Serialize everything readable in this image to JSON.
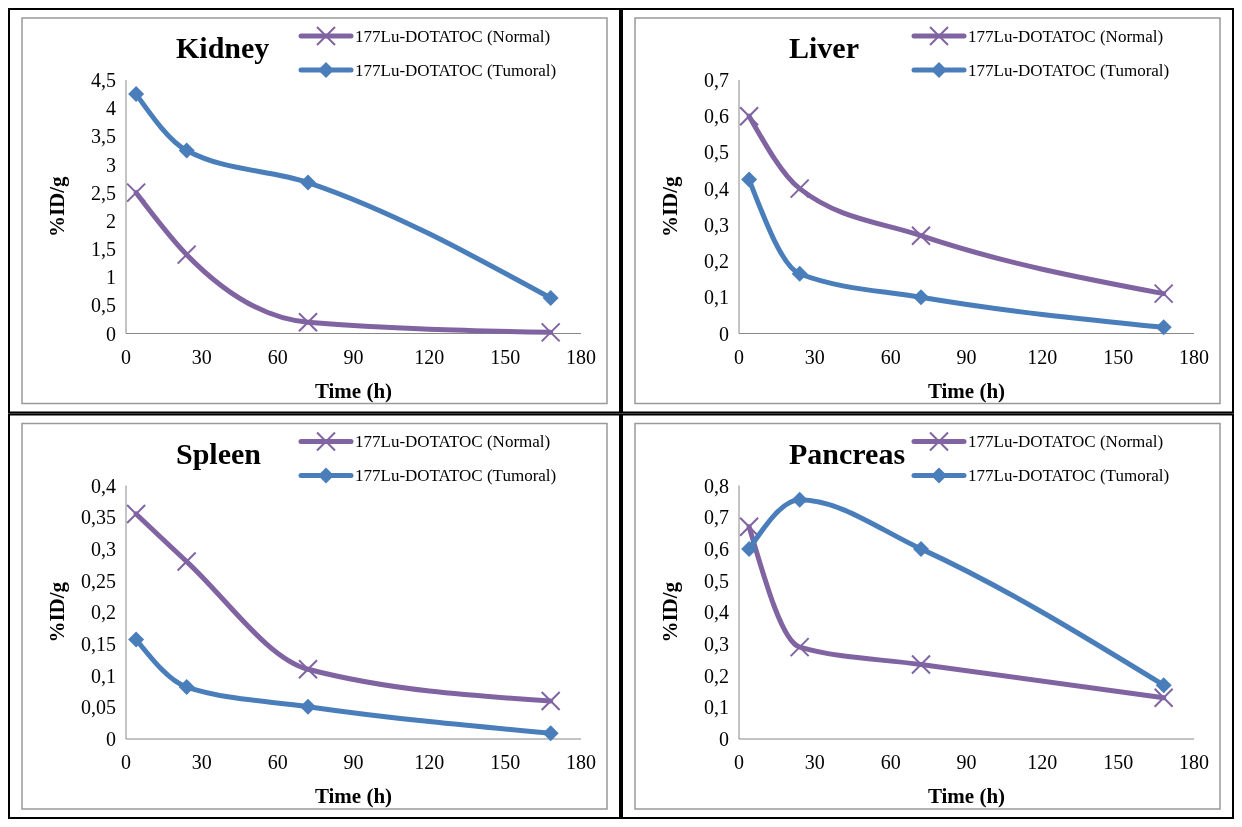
{
  "chart_data": [
    {
      "type": "line",
      "title": "Kidney",
      "xlabel": "Time (h)",
      "ylabel": "%ID/g",
      "x": [
        4,
        24,
        72,
        168
      ],
      "xlim": [
        0,
        180
      ],
      "xticks": [
        0,
        30,
        60,
        90,
        120,
        150,
        180
      ],
      "ylim": [
        0,
        4.5
      ],
      "yticks": [
        0,
        {
          "value": 0.5,
          "label": "0,5"
        },
        1,
        {
          "value": 1.5,
          "label": "1,5"
        },
        2,
        {
          "value": 2.5,
          "label": "2,5"
        },
        3,
        {
          "value": 3.5,
          "label": "3,5"
        },
        4,
        {
          "value": 4.5,
          "label": "4,5"
        }
      ],
      "legend": "top right",
      "grid": false,
      "series": [
        {
          "name": "177Lu-DOTATOC (Normal)",
          "color": "#8064a2",
          "marker": "cross",
          "values": [
            2.5,
            1.4,
            0.2,
            0.02
          ]
        },
        {
          "name": "177Lu-DOTATOC (Tumoral)",
          "color": "#4a7ebb",
          "marker": "diamond",
          "values": [
            4.25,
            3.25,
            2.68,
            0.63
          ]
        }
      ]
    },
    {
      "type": "line",
      "title": "Liver",
      "xlabel": "Time (h)",
      "ylabel": "%ID/g",
      "x": [
        4,
        24,
        72,
        168
      ],
      "xlim": [
        0,
        180
      ],
      "xticks": [
        0,
        30,
        60,
        90,
        120,
        150,
        180
      ],
      "ylim": [
        0,
        0.7
      ],
      "yticks": [
        0,
        {
          "value": 0.1,
          "label": "0,1"
        },
        {
          "value": 0.2,
          "label": "0,2"
        },
        {
          "value": 0.3,
          "label": "0,3"
        },
        {
          "value": 0.4,
          "label": "0,4"
        },
        {
          "value": 0.5,
          "label": "0,5"
        },
        {
          "value": 0.6,
          "label": "0,6"
        },
        {
          "value": 0.7,
          "label": "0,7"
        }
      ],
      "legend": "top right",
      "grid": false,
      "series": [
        {
          "name": "177Lu-DOTATOC (Normal)",
          "color": "#8064a2",
          "marker": "cross",
          "values": [
            0.6,
            0.4,
            0.27,
            0.11
          ]
        },
        {
          "name": "177Lu-DOTATOC (Tumoral)",
          "color": "#4a7ebb",
          "marker": "diamond",
          "values": [
            0.425,
            0.165,
            0.1,
            0.017
          ]
        }
      ]
    },
    {
      "type": "line",
      "title": "Spleen",
      "xlabel": "Time (h)",
      "ylabel": "%ID/g",
      "x": [
        4,
        24,
        72,
        168
      ],
      "xlim": [
        0,
        180
      ],
      "xticks": [
        0,
        30,
        60,
        90,
        120,
        150,
        180
      ],
      "ylim": [
        0,
        0.4
      ],
      "yticks": [
        0,
        {
          "value": 0.05,
          "label": "0,05"
        },
        {
          "value": 0.1,
          "label": "0,1"
        },
        {
          "value": 0.15,
          "label": "0,15"
        },
        {
          "value": 0.2,
          "label": "0,2"
        },
        {
          "value": 0.25,
          "label": "0,25"
        },
        {
          "value": 0.3,
          "label": "0,3"
        },
        {
          "value": 0.35,
          "label": "0,35"
        },
        {
          "value": 0.4,
          "label": "0,4"
        }
      ],
      "legend": "top right",
      "grid": false,
      "series": [
        {
          "name": "177Lu-DOTATOC (Normal)",
          "color": "#8064a2",
          "marker": "cross",
          "values": [
            0.355,
            0.28,
            0.11,
            0.06
          ]
        },
        {
          "name": "177Lu-DOTATOC (Tumoral)",
          "color": "#4a7ebb",
          "marker": "diamond",
          "values": [
            0.157,
            0.082,
            0.051,
            0.009
          ]
        }
      ]
    },
    {
      "type": "line",
      "title": "Pancreas",
      "xlabel": "Time (h)",
      "ylabel": "%ID/g",
      "x": [
        4,
        24,
        72,
        168
      ],
      "xlim": [
        0,
        180
      ],
      "xticks": [
        0,
        30,
        60,
        90,
        120,
        150,
        180
      ],
      "ylim": [
        0,
        0.8
      ],
      "yticks": [
        0,
        {
          "value": 0.1,
          "label": "0,1"
        },
        {
          "value": 0.2,
          "label": "0,2"
        },
        {
          "value": 0.3,
          "label": "0,3"
        },
        {
          "value": 0.4,
          "label": "0,4"
        },
        {
          "value": 0.5,
          "label": "0,5"
        },
        {
          "value": 0.6,
          "label": "0,6"
        },
        {
          "value": 0.7,
          "label": "0,7"
        },
        {
          "value": 0.8,
          "label": "0,8"
        }
      ],
      "legend": "top right",
      "grid": false,
      "series": [
        {
          "name": "177Lu-DOTATOC (Normal)",
          "color": "#8064a2",
          "marker": "cross",
          "values": [
            0.67,
            0.29,
            0.235,
            0.13
          ]
        },
        {
          "name": "177Lu-DOTATOC (Tumoral)",
          "color": "#4a7ebb",
          "marker": "diamond",
          "values": [
            0.6,
            0.755,
            0.6,
            0.17
          ]
        }
      ]
    }
  ]
}
